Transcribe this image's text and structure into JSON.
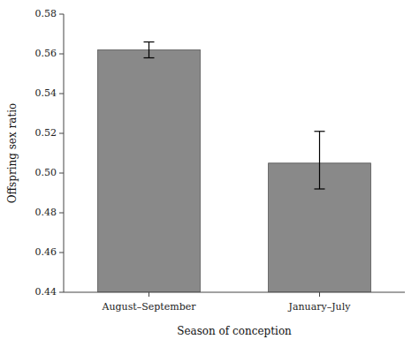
{
  "chart_data": {
    "type": "bar",
    "categories": [
      "August–September",
      "January–July"
    ],
    "values": [
      0.562,
      0.505
    ],
    "error_upper": [
      0.004,
      0.016
    ],
    "error_lower": [
      0.004,
      0.013
    ],
    "color": "#898989",
    "xlabel": "Season of conception",
    "ylabel": "Offspring sex ratio",
    "ylim": [
      0.44,
      0.58
    ],
    "yticks": [
      0.44,
      0.46,
      0.48,
      {
        "value": 0.5,
        "label": "0.50"
      },
      0.52,
      0.54,
      0.56,
      0.58
    ],
    "grid": false
  }
}
